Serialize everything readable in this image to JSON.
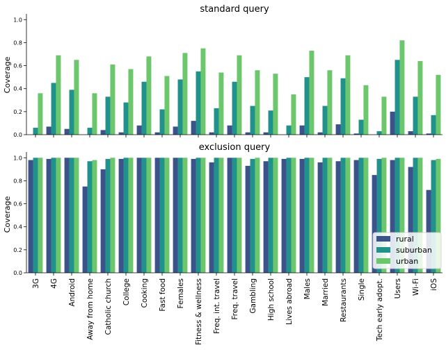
{
  "chart_data": [
    {
      "type": "bar",
      "title": "standard query",
      "xlabel": "",
      "ylabel": "Coverage",
      "ylim": [
        0,
        1.05
      ],
      "yticks": [
        "0.0",
        "0.2",
        "0.4",
        "0.6",
        "0.8",
        "1.0"
      ],
      "categories": [
        "3G",
        "4G",
        "Android",
        "Away from home",
        "Catholic church",
        "College",
        "Cooking",
        "Fast food",
        "Females",
        "Fitness & wellness",
        "Freq. int. travel",
        "Freq. travel",
        "Gambling",
        "High school",
        "Lives abroad",
        "Males",
        "Married",
        "Restaurants",
        "Single",
        "Tech early adopt.",
        "Users",
        "Wi-Fi",
        "iOS"
      ],
      "show_category_labels": false,
      "series": [
        {
          "name": "rural",
          "color": "#3b528b",
          "values": [
            0.0,
            0.07,
            0.05,
            0.0,
            0.04,
            0.02,
            0.08,
            0.02,
            0.07,
            0.12,
            0.02,
            0.08,
            0.02,
            0.02,
            0.0,
            0.08,
            0.02,
            0.09,
            0.01,
            0.0,
            0.2,
            0.03,
            0.01
          ]
        },
        {
          "name": "suburban",
          "color": "#21918c",
          "values": [
            0.06,
            0.45,
            0.39,
            0.06,
            0.33,
            0.28,
            0.46,
            0.22,
            0.48,
            0.55,
            0.23,
            0.46,
            0.25,
            0.21,
            0.08,
            0.5,
            0.25,
            0.49,
            0.13,
            0.03,
            0.65,
            0.33,
            0.17
          ]
        },
        {
          "name": "urban",
          "color": "#6cc66b",
          "values": [
            0.36,
            0.69,
            0.65,
            0.36,
            0.61,
            0.57,
            0.68,
            0.51,
            0.71,
            0.75,
            0.54,
            0.69,
            0.56,
            0.53,
            0.35,
            0.73,
            0.56,
            0.69,
            0.43,
            0.33,
            0.82,
            0.64,
            0.52
          ]
        }
      ],
      "legend": null
    },
    {
      "type": "bar",
      "title": "exclusion query",
      "xlabel": "",
      "ylabel": "Coverage",
      "ylim": [
        0,
        1.05
      ],
      "yticks": [
        "0.0",
        "0.2",
        "0.4",
        "0.6",
        "0.8",
        "1.0"
      ],
      "categories": [
        "3G",
        "4G",
        "Android",
        "Away from home",
        "Catholic church",
        "College",
        "Cooking",
        "Fast food",
        "Females",
        "Fitness & wellness",
        "Freq. int. travel",
        "Freq. travel",
        "Gambling",
        "High school",
        "Lives abroad",
        "Males",
        "Married",
        "Restaurants",
        "Single",
        "Tech early adopt.",
        "Users",
        "Wi-Fi",
        "iOS"
      ],
      "show_category_labels": true,
      "series": [
        {
          "name": "rural",
          "color": "#3b528b",
          "values": [
            0.98,
            0.99,
            1.0,
            0.75,
            0.9,
            0.99,
            1.0,
            1.0,
            1.0,
            0.99,
            0.96,
            1.0,
            0.93,
            0.97,
            0.99,
            0.99,
            0.96,
            0.97,
            0.98,
            0.85,
            0.98,
            0.92,
            0.72
          ]
        },
        {
          "name": "suburban",
          "color": "#21918c",
          "values": [
            1.0,
            1.0,
            1.0,
            0.97,
            0.99,
            1.0,
            1.0,
            1.0,
            1.0,
            1.0,
            1.0,
            1.0,
            0.99,
            1.0,
            1.0,
            1.0,
            1.0,
            1.0,
            1.0,
            0.99,
            1.0,
            1.0,
            0.98
          ]
        },
        {
          "name": "urban",
          "color": "#6cc66b",
          "values": [
            1.0,
            1.0,
            1.0,
            0.98,
            1.0,
            1.0,
            1.0,
            1.0,
            1.0,
            1.0,
            1.0,
            1.0,
            1.0,
            1.0,
            1.0,
            1.0,
            1.0,
            1.0,
            1.0,
            1.0,
            1.0,
            1.0,
            0.99
          ]
        }
      ],
      "legend": "lower-right"
    }
  ]
}
